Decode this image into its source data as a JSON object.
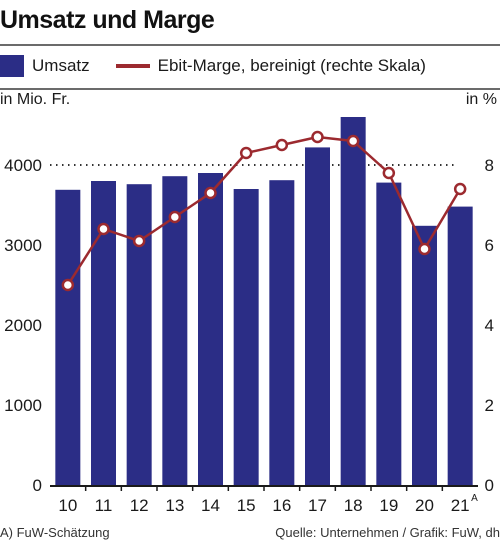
{
  "title": "Umsatz und Marge",
  "legend": {
    "bars": "Umsatz",
    "line": "Ebit-Marge, bereinigt (rechte Skala)"
  },
  "axis_units": {
    "left": "in Mio. Fr.",
    "right": "in %"
  },
  "footnote": "A) FuW-Schätzung",
  "source": "Quelle: Unternehmen / Grafik: FuW, dh",
  "colors": {
    "bars": "#2b2d86",
    "line": "#9c2a2f",
    "gridline": "#333333"
  },
  "chart_data": {
    "type": "bar",
    "categories": [
      "10",
      "11",
      "12",
      "13",
      "14",
      "15",
      "16",
      "17",
      "18",
      "19",
      "20",
      "21"
    ],
    "category_superscripts": {
      "21": "A"
    },
    "series": [
      {
        "name": "Umsatz",
        "type": "bar",
        "axis": "left",
        "values": [
          3690,
          3800,
          3760,
          3860,
          3900,
          3700,
          3810,
          4220,
          4600,
          3780,
          3240,
          3480
        ]
      },
      {
        "name": "Ebit-Marge, bereinigt (rechte Skala)",
        "type": "line",
        "axis": "right",
        "values": [
          5.0,
          6.4,
          6.1,
          6.7,
          7.3,
          8.3,
          8.5,
          8.7,
          8.6,
          7.8,
          5.9,
          7.4
        ]
      }
    ],
    "y_left": {
      "min": 0,
      "max": 4000,
      "ticks": [
        0,
        1000,
        2000,
        3000,
        4000
      ],
      "ylim": [
        0,
        4600
      ]
    },
    "y_right": {
      "min": 0,
      "max": 8,
      "ticks": [
        0,
        2,
        4,
        6,
        8
      ],
      "ylim": [
        0,
        9.2
      ]
    },
    "grid": "dotted line at top tick only"
  }
}
